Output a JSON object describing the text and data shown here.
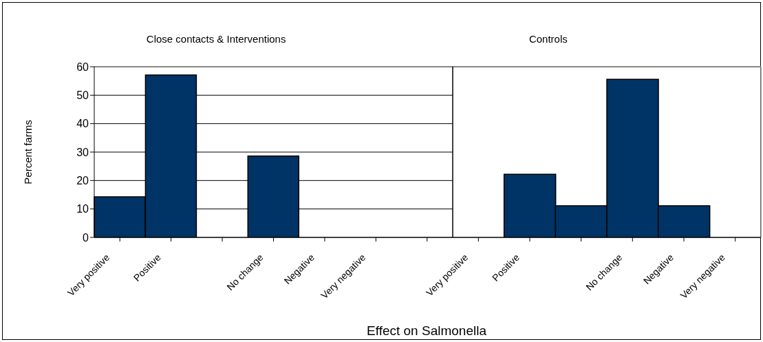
{
  "chart_data": [
    {
      "type": "bar",
      "title": "Close contacts & Interventions",
      "categories": [
        "Very positive",
        "Positive",
        null,
        "No change",
        "Negative",
        "Very negative",
        null
      ],
      "values": [
        14.3,
        57.1,
        null,
        28.6,
        0,
        0,
        null
      ],
      "color": "#003366",
      "xlabel": "Effect on Salmonella",
      "ylabel": "Percent farms",
      "ylim": [
        0,
        60
      ],
      "yticks": [
        0,
        10,
        20,
        30,
        40,
        50,
        60
      ],
      "grid": "y"
    },
    {
      "type": "bar",
      "title": "Controls",
      "categories": [
        "Very positive",
        "Positive",
        null,
        "No change",
        "Negative",
        "Very negative"
      ],
      "values": [
        0,
        22.2,
        11.1,
        55.6,
        11.1,
        0
      ],
      "color": "#003366",
      "ylim": [
        0,
        60
      ],
      "yticks": [
        0,
        10,
        20,
        30,
        40,
        50,
        60
      ],
      "grid": "y",
      "tick_labels": "x"
    }
  ]
}
